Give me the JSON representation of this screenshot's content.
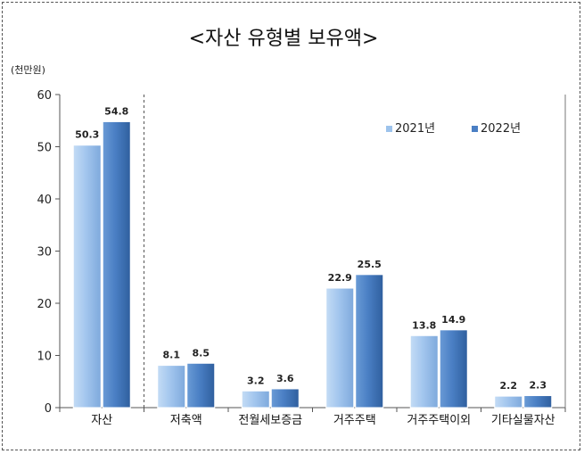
{
  "chart_data": {
    "type": "bar",
    "title": "<자산 유형별 보유액>",
    "unit_label": "(천만원)",
    "categories": [
      "자산",
      "저축액",
      "전월세보증금",
      "거주주택",
      "거주주택이외",
      "기타실물자산"
    ],
    "series": [
      {
        "name": "2021년",
        "values": [
          50.3,
          8.1,
          3.2,
          22.9,
          13.8,
          2.2
        ],
        "value_labels": [
          "50.3",
          "8.1",
          "3.2",
          "22.9",
          "13.8",
          "2.2"
        ],
        "color": "#9dc3ec"
      },
      {
        "name": "2022년",
        "values": [
          54.8,
          8.5,
          3.6,
          25.5,
          14.9,
          2.3
        ],
        "value_labels": [
          "54.8",
          "8.5",
          "3.6",
          "25.5",
          "14.9",
          "2.3"
        ],
        "color": "#4a7fc4"
      }
    ],
    "yticks": [
      "0",
      "10",
      "20",
      "30",
      "40",
      "50",
      "60"
    ],
    "ylim": [
      0,
      60
    ],
    "grid": false,
    "legend_position": "top-right",
    "separator_after_category": 0
  }
}
